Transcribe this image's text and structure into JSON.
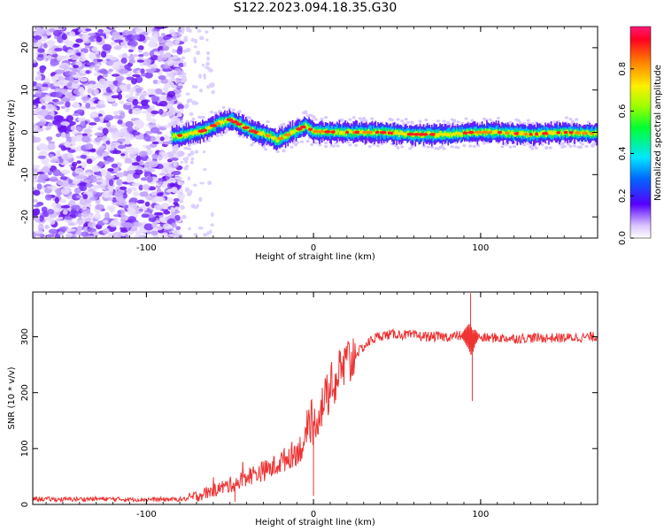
{
  "title": "S122.2023.094.18.35.G30",
  "chart_data": [
    {
      "type": "heatmap",
      "xlabel": "Height of straight line (km)",
      "ylabel": "Frequency (Hz)",
      "xlim": [
        -168,
        170
      ],
      "ylim": [
        -25,
        25
      ],
      "x_ticks": [
        -100,
        0,
        100
      ],
      "y_ticks": [
        -20,
        -10,
        0,
        10,
        20
      ],
      "colorbar": {
        "label": "Normalized spectral amplitude",
        "range": [
          0.0,
          1.0
        ],
        "ticks": [
          0.0,
          0.2,
          0.4,
          0.6,
          0.8
        ]
      },
      "ridge_x": [
        -85,
        -75,
        -65,
        -58,
        -50,
        -45,
        -40,
        -35,
        -30,
        -25,
        -22,
        -20,
        -15,
        -10,
        -5,
        0,
        20,
        40,
        60,
        80,
        95,
        110,
        130,
        150,
        170
      ],
      "ridge_y": [
        -1,
        -0.5,
        0.5,
        2,
        3,
        2,
        1,
        0,
        -0.5,
        -1,
        -2,
        -1.5,
        -0.5,
        0.5,
        1.5,
        0.2,
        0,
        0,
        -0.5,
        -0.5,
        0,
        0,
        -0.5,
        0,
        -0.3
      ],
      "noise_region_x": [
        -168,
        -85
      ]
    },
    {
      "type": "line",
      "xlabel": "Height of straight line (km)",
      "ylabel": "SNR (10 * v/v)",
      "xlim": [
        -168,
        170
      ],
      "ylim": [
        0,
        380
      ],
      "x_ticks": [
        -100,
        0,
        100
      ],
      "y_ticks": [
        0,
        100,
        200,
        300
      ],
      "color": "#ee3333",
      "series": [
        {
          "x": [
            -168,
            -150,
            -130,
            -110,
            -90,
            -80,
            -75,
            -70,
            -65,
            -60,
            -55,
            -50,
            -45,
            -40,
            -35,
            -30,
            -25,
            -20,
            -15,
            -10,
            -5,
            0,
            5,
            10,
            15,
            20,
            25,
            30,
            35,
            40,
            50,
            60,
            70,
            80,
            90,
            93,
            95,
            97,
            100,
            110,
            120,
            130,
            140,
            150,
            160,
            170
          ],
          "y": [
            10,
            9,
            10,
            9,
            9,
            9,
            10,
            15,
            20,
            25,
            30,
            35,
            40,
            50,
            55,
            60,
            65,
            75,
            85,
            95,
            110,
            140,
            175,
            205,
            230,
            250,
            268,
            282,
            295,
            302,
            305,
            302,
            300,
            300,
            302,
            300,
            290,
            300,
            298,
            298,
            297,
            298,
            298,
            298,
            299,
            300
          ]
        }
      ],
      "spikes": [
        {
          "x": 94,
          "y": 378
        },
        {
          "x": 95,
          "y": 185
        },
        {
          "x": 0,
          "y": 15
        },
        {
          "x": -47,
          "y": 5
        }
      ]
    }
  ]
}
